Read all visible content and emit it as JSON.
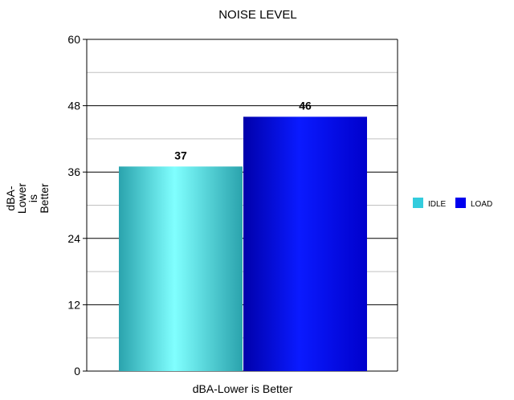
{
  "chart_data": {
    "type": "bar",
    "title": "NOISE LEVEL",
    "xlabel": "dBA-Lower is Better",
    "ylabel": "dBA-Lower is Better",
    "ylabel_lines": [
      "dBA-",
      "Lower",
      "is",
      "Better"
    ],
    "ylim": [
      0,
      60
    ],
    "yticks": [
      0,
      12,
      24,
      36,
      48,
      60
    ],
    "grid": true,
    "legend_position": "right",
    "series": [
      {
        "name": "IDLE",
        "value": 37,
        "label": "37",
        "color": "#33ccdd"
      },
      {
        "name": "LOAD",
        "value": 46,
        "label": "46",
        "color": "#0000ee"
      }
    ]
  }
}
